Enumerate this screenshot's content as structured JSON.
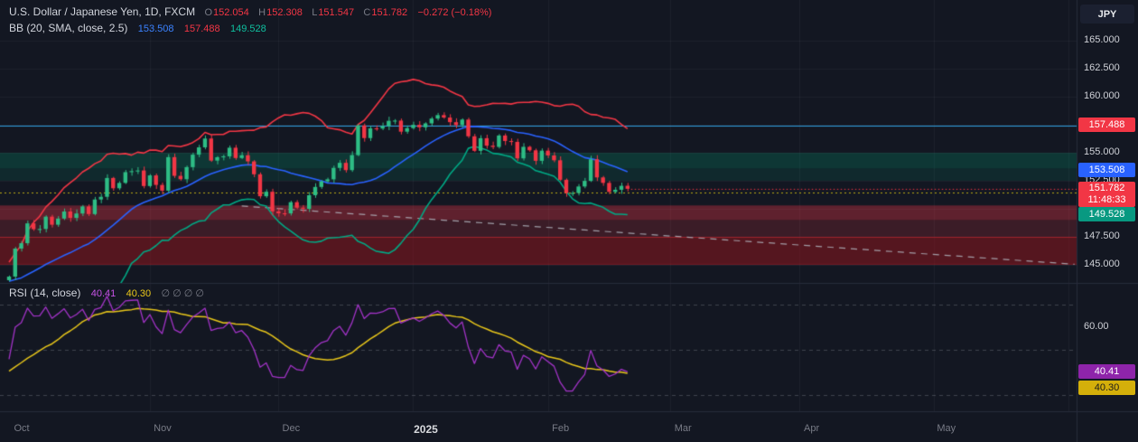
{
  "header": {
    "title": "U.S. Dollar / Japanese Yen, 1D, FXCM",
    "o_label": "O",
    "o": "152.054",
    "h_label": "H",
    "h": "152.308",
    "l_label": "L",
    "l": "151.547",
    "c_label": "C",
    "c": "151.782",
    "change": "−0.272 (−0.18%)"
  },
  "bb": {
    "title": "BB (20, SMA, close, 2.5)",
    "basis": "153.508",
    "upper": "157.488",
    "lower": "149.528"
  },
  "rsi": {
    "title": "RSI (14, close)",
    "value": "40.41",
    "ma": "40.30",
    "hidden": "∅ ∅ ∅ ∅"
  },
  "price_axis": {
    "unit": "JPY",
    "ticks": [
      {
        "price": 165.0,
        "label": "165.000"
      },
      {
        "price": 162.5,
        "label": "162.500"
      },
      {
        "price": 160.0,
        "label": "160.000"
      },
      {
        "price": 155.0,
        "label": "155.000"
      },
      {
        "price": 152.5,
        "label": "152.500"
      },
      {
        "price": 147.5,
        "label": "147.500"
      },
      {
        "price": 145.0,
        "label": "145.000"
      }
    ],
    "badges": [
      {
        "label": "157.488",
        "price": 157.488,
        "bg": "#f23645",
        "fg": "#ffffff"
      },
      {
        "label": "153.508",
        "price": 153.508,
        "bg": "#2962ff",
        "fg": "#ffffff"
      },
      {
        "label": "151.782",
        "sub": "11:48:33",
        "price": 151.782,
        "bg": "#f23645",
        "fg": "#ffffff"
      },
      {
        "label": "149.528",
        "price": 149.528,
        "bg": "#089981",
        "fg": "#ffffff"
      }
    ]
  },
  "rsi_axis": {
    "ticks": [
      {
        "value": 60,
        "label": "60.00"
      }
    ],
    "badges": [
      {
        "label": "40.41",
        "value": 40.41,
        "bg": "#8e24aa",
        "fg": "#ffffff",
        "offset": 0
      },
      {
        "label": "40.30",
        "value": 40.3,
        "bg": "#d4af0a",
        "fg": "#1b1b1b",
        "offset": 18
      }
    ]
  },
  "time_axis": {
    "months": [
      {
        "label": "Oct",
        "bar": 0
      },
      {
        "label": "Nov",
        "bar": 23
      },
      {
        "label": "Dec",
        "bar": 44
      },
      {
        "label": "2025",
        "bar": 66,
        "highlight": true
      },
      {
        "label": "Feb",
        "bar": 88
      },
      {
        "label": "Mar",
        "bar": 108
      },
      {
        "label": "Apr",
        "bar": 129
      },
      {
        "label": "May",
        "bar": 151
      }
    ]
  },
  "colors": {
    "bg": "#131722",
    "grid": "rgba(148,152,164,0.08)",
    "sep": "#262b3b",
    "up": "#2ebd85",
    "down": "#f23645",
    "bb_upper": "#f23645",
    "bb_basis": "#2962ff",
    "bb_lower": "#00a884",
    "rsi_line": "#a333c8",
    "rsi_ma": "#e8c61a",
    "trend": "rgba(178,181,190,0.85)",
    "level_blue": "#2f9fe0",
    "level_yellow": "#b8a912",
    "price_line": "#f23645",
    "rsi_grid": "rgba(163,168,180,0.30)",
    "axis_text": "#ced0d6",
    "muted_text": "#787b86"
  },
  "chart_data": {
    "type": "candlestick",
    "title": "U.S. Dollar / Japanese Yen, 1D, FXCM",
    "timeframe": "1D",
    "pre_closes": [
      146.9,
      147.1,
      146.3,
      145.8,
      146.2,
      144.6,
      144.2,
      143.8,
      143.1,
      142.9,
      142.5,
      143.4,
      143.9,
      142.8,
      142.6,
      142.2,
      142.8,
      143.3,
      143.7,
      144.3,
      144.5,
      143.9,
      144.6,
      144.8,
      143.6,
      143.0,
      143.6,
      143.2,
      142.9,
      143.63
    ],
    "closes": [
      143.95,
      146.45,
      146.93,
      148.7,
      148.18,
      148.2,
      149.3,
      148.58,
      149.13,
      149.76,
      149.19,
      149.58,
      150.21,
      149.53,
      150.83,
      151.07,
      152.75,
      151.83,
      152.31,
      153.27,
      153.36,
      153.42,
      152.03,
      152.98,
      152.13,
      151.62,
      154.61,
      152.94,
      152.64,
      153.72,
      154.83,
      155.48,
      156.27,
      154.3,
      154.6,
      154.68,
      155.45,
      154.53,
      154.78,
      154.23,
      153.08,
      151.12,
      151.52,
      149.77,
      149.6,
      149.59,
      150.59,
      150.1,
      150.0,
      151.21,
      151.95,
      152.45,
      152.63,
      153.65,
      154.1,
      153.45,
      154.79,
      157.44,
      156.31,
      157.18,
      157.16,
      157.38,
      157.85,
      157.87,
      156.88,
      157.2,
      157.49,
      157.27,
      157.62,
      158.05,
      158.36,
      158.14,
      157.73,
      157.47,
      157.96,
      156.47,
      155.17,
      156.3,
      155.63,
      155.52,
      156.54,
      156.05,
      155.97,
      154.5,
      155.53,
      155.22,
      154.28,
      155.19,
      154.76,
      154.33,
      152.59,
      151.41,
      151.41,
      151.99,
      152.49,
      154.42,
      152.8,
      152.31,
      151.51,
      151.7,
      152.05,
      151.782
    ],
    "last_candle": {
      "o": 152.054,
      "h": 152.308,
      "l": 151.547,
      "c": 151.782
    },
    "overlays": {
      "bollinger": {
        "length": 20,
        "source": "close",
        "mult": 2.5,
        "basis_last": 153.508,
        "upper_last": 157.488,
        "lower_last": 149.528
      },
      "levels": [
        {
          "price": 157.45,
          "style": "solid",
          "color_key": "level_blue"
        },
        {
          "price": 151.45,
          "style": "dotted",
          "color_key": "level_yellow"
        }
      ],
      "trendline": {
        "from_bar": 38,
        "from_price": 150.25,
        "to_bar": 174,
        "to_price": 145.05
      },
      "zones": [
        {
          "top": 155.0,
          "bottom": 153.6,
          "fill": "rgba(0,153,110,0.25)"
        },
        {
          "top": 153.6,
          "bottom": 152.5,
          "fill": "rgba(0,153,110,0.14)"
        },
        {
          "top": 150.3,
          "bottom": 149.0,
          "fill": "rgba(242,54,69,0.34)"
        },
        {
          "top": 149.0,
          "bottom": 147.5,
          "fill": "rgba(242,54,69,0.18)"
        },
        {
          "top": 147.5,
          "bottom": 145.1,
          "fill": "rgba(140,22,30,0.55)",
          "border": "rgba(190,30,38,0.7)"
        }
      ]
    },
    "indicator": {
      "name": "RSI",
      "length": 14,
      "ma_length": 14,
      "value_last": 40.41,
      "ma_last": 40.3,
      "gridlines": [
        70,
        50,
        30
      ]
    },
    "x_axis": {
      "grid_bars": [
        23,
        44,
        66,
        88,
        108,
        129,
        151,
        173
      ]
    },
    "y_axis": {
      "grid_prices": [
        165,
        162.5,
        160,
        157.5,
        155,
        152.5,
        150,
        147.5,
        145
      ],
      "visible_range": [
        143.4,
        168.6
      ]
    }
  }
}
